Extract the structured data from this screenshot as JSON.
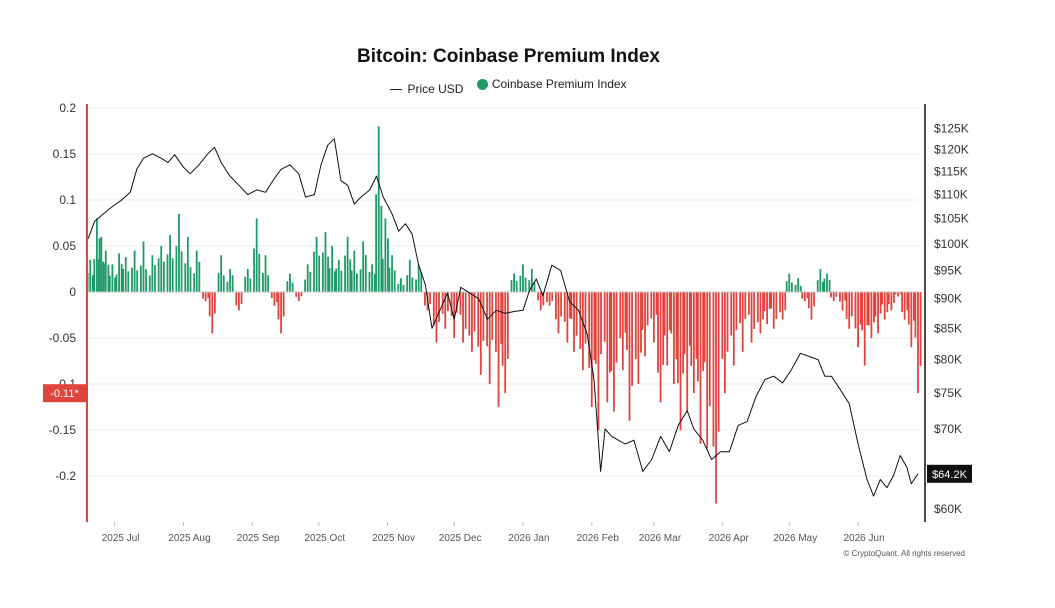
{
  "title": "Bitcoin: Coinbase Premium Index",
  "legend": {
    "price_label": "Price USD",
    "index_label": "Coinbase Premium Index"
  },
  "copyright": "© CryptoQuant. All rights reserved",
  "colors": {
    "positive": "#1e9a68",
    "negative": "#e0453d",
    "price": "#111111",
    "current_badge_left": "#e0453d",
    "current_badge_right": "#111111"
  },
  "chart_data": {
    "type": "bar",
    "title": "Bitcoin: Coinbase Premium Index",
    "y_left": {
      "min": -0.25,
      "max": 0.2,
      "ticks": [
        "0.2",
        "0.15",
        "0.1",
        "0.05",
        "0",
        "-0.05",
        "-0.1",
        "-0.15",
        "-0.2"
      ],
      "tick_values": [
        0.2,
        0.15,
        0.1,
        0.05,
        0,
        -0.05,
        -0.1,
        -0.15,
        -0.2
      ]
    },
    "y_right": {
      "scale": "log",
      "min": 58500,
      "max": 130000,
      "ticks": [
        "$125K",
        "$120K",
        "$115K",
        "$110K",
        "$105K",
        "$100K",
        "$95K",
        "$90K",
        "$85K",
        "$80K",
        "$75K",
        "$70K",
        "$60K"
      ],
      "tick_values": [
        125000,
        120000,
        115000,
        110000,
        105000,
        100000,
        95000,
        90000,
        85000,
        80000,
        75000,
        70000,
        60000
      ]
    },
    "x_axis": {
      "start": "2025-06-19",
      "end": "2026-06-28",
      "tick_labels": [
        "2025 Jul",
        "2025 Aug",
        "2025 Sep",
        "2025 Oct",
        "2025 Nov",
        "2025 Dec",
        "2026 Jan",
        "2026 Feb",
        "2026 Mar",
        "2026 Apr",
        "2026 May",
        "2026 Jun"
      ],
      "tick_dates": [
        "2025-07-01",
        "2025-08-01",
        "2025-09-01",
        "2025-10-01",
        "2025-11-01",
        "2025-12-01",
        "2026-01-01",
        "2026-02-01",
        "2026-03-01",
        "2026-04-01",
        "2026-05-01",
        "2026-06-01"
      ]
    },
    "current_index": {
      "label": "-0.11*",
      "value": -0.11
    },
    "current_price": {
      "label": "$64.2K",
      "value": 64200
    },
    "series": [
      {
        "name": "Coinbase Premium Index",
        "kind": "bar",
        "points": [
          [
            "2025-06-20",
            0.035
          ],
          [
            "2025-06-23",
            0.08
          ],
          [
            "2025-06-25",
            0.06
          ],
          [
            "2025-06-27",
            0.045
          ],
          [
            "2025-06-30",
            0.03
          ],
          [
            "2025-07-03",
            0.042
          ],
          [
            "2025-07-06",
            0.038
          ],
          [
            "2025-07-10",
            0.045
          ],
          [
            "2025-07-14",
            0.055
          ],
          [
            "2025-07-18",
            0.04
          ],
          [
            "2025-07-22",
            0.05
          ],
          [
            "2025-07-26",
            0.062
          ],
          [
            "2025-07-30",
            0.085
          ],
          [
            "2025-08-03",
            0.06
          ],
          [
            "2025-08-07",
            0.045
          ],
          [
            "2025-08-11",
            -0.01
          ],
          [
            "2025-08-14",
            -0.045
          ],
          [
            "2025-08-18",
            0.04
          ],
          [
            "2025-08-22",
            0.025
          ],
          [
            "2025-08-26",
            -0.02
          ],
          [
            "2025-08-30",
            0.025
          ],
          [
            "2025-09-03",
            0.08
          ],
          [
            "2025-09-07",
            0.04
          ],
          [
            "2025-09-11",
            -0.015
          ],
          [
            "2025-09-14",
            -0.045
          ],
          [
            "2025-09-18",
            0.02
          ],
          [
            "2025-09-22",
            -0.01
          ],
          [
            "2025-09-26",
            0.03
          ],
          [
            "2025-09-30",
            0.06
          ],
          [
            "2025-10-04",
            0.065
          ],
          [
            "2025-10-07",
            0.05
          ],
          [
            "2025-10-10",
            0.035
          ],
          [
            "2025-10-14",
            0.06
          ],
          [
            "2025-10-17",
            0.045
          ],
          [
            "2025-10-21",
            0.055
          ],
          [
            "2025-10-25",
            0.03
          ],
          [
            "2025-10-28",
            0.18
          ],
          [
            "2025-10-31",
            0.08
          ],
          [
            "2025-11-03",
            0.04
          ],
          [
            "2025-11-07",
            0.015
          ],
          [
            "2025-11-11",
            0.035
          ],
          [
            "2025-11-15",
            0.03
          ],
          [
            "2025-11-19",
            -0.02
          ],
          [
            "2025-11-23",
            -0.055
          ],
          [
            "2025-11-27",
            -0.04
          ],
          [
            "2025-12-01",
            -0.05
          ],
          [
            "2025-12-05",
            -0.055
          ],
          [
            "2025-12-09",
            -0.065
          ],
          [
            "2025-12-13",
            -0.09
          ],
          [
            "2025-12-17",
            -0.1
          ],
          [
            "2025-12-21",
            -0.125
          ],
          [
            "2025-12-24",
            -0.11
          ],
          [
            "2025-12-28",
            0.02
          ],
          [
            "2026-01-01",
            0.03
          ],
          [
            "2026-01-05",
            0.025
          ],
          [
            "2026-01-09",
            -0.02
          ],
          [
            "2026-01-13",
            -0.015
          ],
          [
            "2026-01-17",
            -0.045
          ],
          [
            "2026-01-21",
            -0.055
          ],
          [
            "2026-01-24",
            -0.065
          ],
          [
            "2026-01-28",
            -0.085
          ],
          [
            "2026-02-01",
            -0.125
          ],
          [
            "2026-02-04",
            -0.15
          ],
          [
            "2026-02-08",
            -0.12
          ],
          [
            "2026-02-11",
            -0.13
          ],
          [
            "2026-02-15",
            -0.085
          ],
          [
            "2026-02-18",
            -0.14
          ],
          [
            "2026-02-22",
            -0.1
          ],
          [
            "2026-02-25",
            -0.07
          ],
          [
            "2026-03-01",
            -0.055
          ],
          [
            "2026-03-04",
            -0.12
          ],
          [
            "2026-03-07",
            -0.08
          ],
          [
            "2026-03-10",
            -0.1
          ],
          [
            "2026-03-13",
            -0.15
          ],
          [
            "2026-03-16",
            -0.13
          ],
          [
            "2026-03-19",
            -0.11
          ],
          [
            "2026-03-22",
            -0.165
          ],
          [
            "2026-03-25",
            -0.17
          ],
          [
            "2026-03-29",
            -0.23
          ],
          [
            "2026-04-02",
            -0.11
          ],
          [
            "2026-04-06",
            -0.08
          ],
          [
            "2026-04-10",
            -0.065
          ],
          [
            "2026-04-14",
            -0.055
          ],
          [
            "2026-04-18",
            -0.045
          ],
          [
            "2026-04-21",
            -0.035
          ],
          [
            "2026-04-24",
            -0.04
          ],
          [
            "2026-04-28",
            -0.03
          ],
          [
            "2026-05-01",
            0.02
          ],
          [
            "2026-05-05",
            0.015
          ],
          [
            "2026-05-08",
            -0.01
          ],
          [
            "2026-05-11",
            -0.03
          ],
          [
            "2026-05-15",
            0.025
          ],
          [
            "2026-05-18",
            0.02
          ],
          [
            "2026-05-21",
            -0.01
          ],
          [
            "2026-05-25",
            -0.02
          ],
          [
            "2026-05-28",
            -0.04
          ],
          [
            "2026-06-01",
            -0.06
          ],
          [
            "2026-06-04",
            -0.08
          ],
          [
            "2026-06-07",
            -0.05
          ],
          [
            "2026-06-10",
            -0.045
          ],
          [
            "2026-06-13",
            -0.03
          ],
          [
            "2026-06-16",
            -0.02
          ],
          [
            "2026-06-19",
            -0.005
          ],
          [
            "2026-06-22",
            -0.03
          ],
          [
            "2026-06-25",
            -0.06
          ],
          [
            "2026-06-28",
            -0.11
          ]
        ]
      },
      {
        "name": "Price USD",
        "kind": "line",
        "points": [
          [
            "2025-06-19",
            101000
          ],
          [
            "2025-06-22",
            104500
          ],
          [
            "2025-06-26",
            106000
          ],
          [
            "2025-06-30",
            107500
          ],
          [
            "2025-07-04",
            108800
          ],
          [
            "2025-07-08",
            110500
          ],
          [
            "2025-07-11",
            115500
          ],
          [
            "2025-07-14",
            118000
          ],
          [
            "2025-07-18",
            119000
          ],
          [
            "2025-07-22",
            118000
          ],
          [
            "2025-07-25",
            117000
          ],
          [
            "2025-07-28",
            118800
          ],
          [
            "2025-08-01",
            116000
          ],
          [
            "2025-08-04",
            114500
          ],
          [
            "2025-08-08",
            116500
          ],
          [
            "2025-08-12",
            119000
          ],
          [
            "2025-08-15",
            120500
          ],
          [
            "2025-08-18",
            117000
          ],
          [
            "2025-08-22",
            114000
          ],
          [
            "2025-08-26",
            112000
          ],
          [
            "2025-08-30",
            110000
          ],
          [
            "2025-09-03",
            111000
          ],
          [
            "2025-09-07",
            110500
          ],
          [
            "2025-09-11",
            113500
          ],
          [
            "2025-09-14",
            115500
          ],
          [
            "2025-09-18",
            116500
          ],
          [
            "2025-09-22",
            114500
          ],
          [
            "2025-09-25",
            109500
          ],
          [
            "2025-09-29",
            110000
          ],
          [
            "2025-10-02",
            116500
          ],
          [
            "2025-10-05",
            121000
          ],
          [
            "2025-10-08",
            122500
          ],
          [
            "2025-10-11",
            113000
          ],
          [
            "2025-10-14",
            112000
          ],
          [
            "2025-10-17",
            108000
          ],
          [
            "2025-10-20",
            109500
          ],
          [
            "2025-10-24",
            111000
          ],
          [
            "2025-10-27",
            114000
          ],
          [
            "2025-10-30",
            109500
          ],
          [
            "2025-11-03",
            106000
          ],
          [
            "2025-11-06",
            102500
          ],
          [
            "2025-11-09",
            104000
          ],
          [
            "2025-11-12",
            102000
          ],
          [
            "2025-11-15",
            96000
          ],
          [
            "2025-11-18",
            92500
          ],
          [
            "2025-11-21",
            85000
          ],
          [
            "2025-11-24",
            87500
          ],
          [
            "2025-11-28",
            91000
          ],
          [
            "2025-12-01",
            86500
          ],
          [
            "2025-12-04",
            92000
          ],
          [
            "2025-12-08",
            91000
          ],
          [
            "2025-12-12",
            90000
          ],
          [
            "2025-12-16",
            86500
          ],
          [
            "2025-12-20",
            88000
          ],
          [
            "2025-12-24",
            87500
          ],
          [
            "2025-12-28",
            87800
          ],
          [
            "2026-01-01",
            88000
          ],
          [
            "2026-01-04",
            91500
          ],
          [
            "2026-01-07",
            93500
          ],
          [
            "2026-01-10",
            90500
          ],
          [
            "2026-01-14",
            96000
          ],
          [
            "2026-01-18",
            95000
          ],
          [
            "2026-01-22",
            89500
          ],
          [
            "2026-01-26",
            88000
          ],
          [
            "2026-01-30",
            84000
          ],
          [
            "2026-02-02",
            77000
          ],
          [
            "2026-02-05",
            64500
          ],
          [
            "2026-02-07",
            70000
          ],
          [
            "2026-02-10",
            69000
          ],
          [
            "2026-02-13",
            68500
          ],
          [
            "2026-02-16",
            68000
          ],
          [
            "2026-02-20",
            68500
          ],
          [
            "2026-02-24",
            64500
          ],
          [
            "2026-02-28",
            66000
          ],
          [
            "2026-03-04",
            69000
          ],
          [
            "2026-03-08",
            67000
          ],
          [
            "2026-03-12",
            70500
          ],
          [
            "2026-03-16",
            72500
          ],
          [
            "2026-03-19",
            70000
          ],
          [
            "2026-03-23",
            68500
          ],
          [
            "2026-03-27",
            66000
          ],
          [
            "2026-03-31",
            67000
          ],
          [
            "2026-04-04",
            67000
          ],
          [
            "2026-04-08",
            70500
          ],
          [
            "2026-04-12",
            71000
          ],
          [
            "2026-04-16",
            74500
          ],
          [
            "2026-04-20",
            77000
          ],
          [
            "2026-04-24",
            77500
          ],
          [
            "2026-04-28",
            76500
          ],
          [
            "2026-05-02",
            78500
          ],
          [
            "2026-05-06",
            81000
          ],
          [
            "2026-05-10",
            80500
          ],
          [
            "2026-05-14",
            80000
          ],
          [
            "2026-05-17",
            77500
          ],
          [
            "2026-05-20",
            77500
          ],
          [
            "2026-05-24",
            75500
          ],
          [
            "2026-05-28",
            73500
          ],
          [
            "2026-06-01",
            68000
          ],
          [
            "2026-06-05",
            63500
          ],
          [
            "2026-06-08",
            61500
          ],
          [
            "2026-06-11",
            63500
          ],
          [
            "2026-06-14",
            62500
          ],
          [
            "2026-06-17",
            64000
          ],
          [
            "2026-06-20",
            66500
          ],
          [
            "2026-06-23",
            65000
          ],
          [
            "2026-06-25",
            63000
          ],
          [
            "2026-06-28",
            64200
          ]
        ]
      }
    ]
  }
}
